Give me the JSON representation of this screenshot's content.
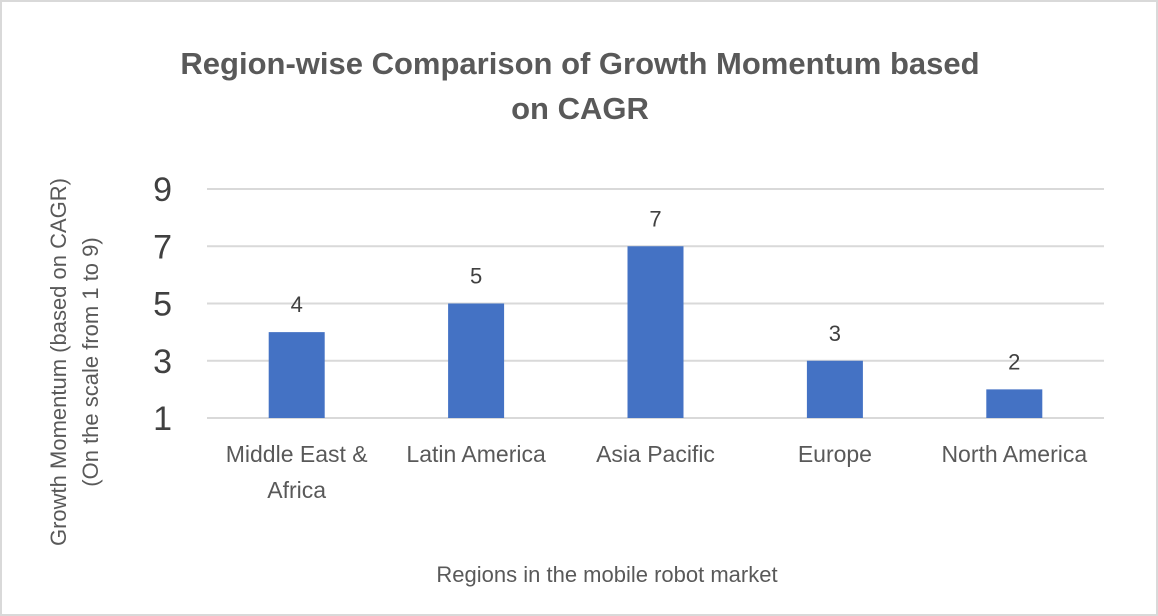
{
  "chart_data": {
    "type": "bar",
    "title_lines": [
      "Region-wise Comparison of Growth Momentum based",
      "on CAGR"
    ],
    "categories": [
      [
        "Middle East &",
        "Africa"
      ],
      [
        "Latin America"
      ],
      [
        "Asia Pacific"
      ],
      [
        "Europe"
      ],
      [
        "North America"
      ]
    ],
    "values": [
      4,
      5,
      7,
      3,
      2
    ],
    "data_labels": [
      "4",
      "5",
      "7",
      "3",
      "2"
    ],
    "yticks": [
      "1",
      "3",
      "5",
      "7",
      "9"
    ],
    "ylim": [
      1,
      9
    ],
    "ylabel_lines": [
      "Growth Momentum (based on CAGR)",
      "(On the scale from 1 to 9)"
    ],
    "xlabel": "Regions in the mobile robot market",
    "bar_color": "#4472c4",
    "grid": true,
    "legend": "none"
  }
}
